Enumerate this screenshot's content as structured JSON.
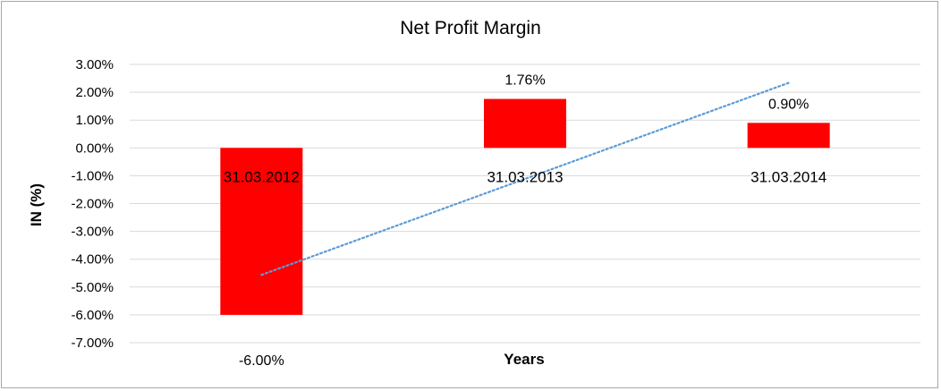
{
  "chart_data": {
    "type": "bar",
    "title": "Net Profit Margin",
    "xlabel": "Years",
    "ylabel": "IN (%)",
    "categories": [
      "31.03.2012",
      "31.03.2013",
      "31.03.2014"
    ],
    "values": [
      -6.0,
      1.76,
      0.9
    ],
    "data_labels": [
      "-6.00%",
      "1.76%",
      "0.90%"
    ],
    "ylim": [
      -7,
      3
    ],
    "y_ticks": [
      3,
      2,
      1,
      0,
      -1,
      -2,
      -3,
      -4,
      -5,
      -6,
      -7
    ],
    "y_tick_labels": [
      "3.00%",
      "2.00%",
      "1.00%",
      "0.00%",
      "-1.00%",
      "-2.00%",
      "-3.00%",
      "-4.00%",
      "-5.00%",
      "-6.00%",
      "-7.00%"
    ],
    "grid": true,
    "trendline": {
      "type": "linear",
      "style": "dotted"
    },
    "colors": {
      "bar": "#ff0000",
      "trendline": "#5b9bd5",
      "grid": "#d9d9d9"
    }
  }
}
